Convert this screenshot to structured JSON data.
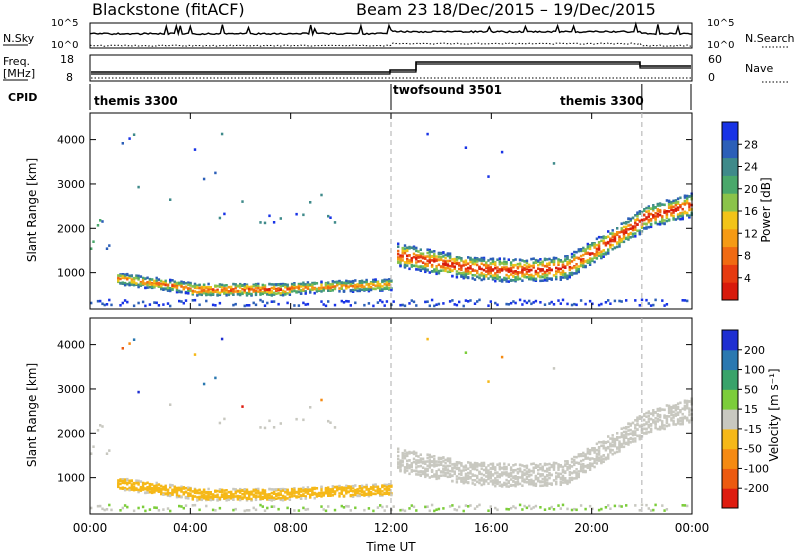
{
  "header": {
    "station": "Blackstone (fitACF)",
    "beam": "Beam 23",
    "dates": "18/Dec/2015 – 19/Dec/2015"
  },
  "status_panels": {
    "nsky_label": "N.Sky",
    "nsearch_label": "N.Search",
    "nsky_ticks": [
      "10^5",
      "10^0"
    ],
    "nsearch_ticks": [
      "10^5",
      "10^0"
    ],
    "freq_label": "Freq.",
    "freq_unit": "[MHz]",
    "freq_ticks": [
      "18",
      "8"
    ],
    "nave_label": "Nave",
    "nave_ticks": [
      "60",
      "0"
    ],
    "cpid_label": "CPID",
    "programs": [
      "themis 3300",
      "twofsound 3501",
      "themis 3300"
    ],
    "program_switch_hours": [
      12,
      22
    ]
  },
  "chart_data": [
    {
      "type": "heatmap",
      "title": "",
      "xlabel": "Time UT",
      "ylabel": "Slant Range [km]",
      "x_ticks": [
        "00:00",
        "04:00",
        "08:00",
        "12:00",
        "16:00",
        "20:00",
        "00:00"
      ],
      "xlim": [
        0,
        24
      ],
      "y_ticks": [
        1000,
        2000,
        3000,
        4000
      ],
      "ylim": [
        180,
        4600
      ],
      "colorbar": {
        "label": "Power [dB]",
        "ticks": [
          4,
          8,
          12,
          16,
          20,
          24,
          28
        ],
        "range": [
          0,
          32
        ],
        "colors": [
          "#1833e6",
          "#2c5fb8",
          "#3f8a8a",
          "#4aa86b",
          "#8bc34a",
          "#f2c418",
          "#f59a14",
          "#f06a12",
          "#e63a10",
          "#d81a0c"
        ]
      },
      "grid_lines_hours": [
        12,
        22
      ]
    },
    {
      "type": "heatmap",
      "title": "",
      "xlabel": "Time UT",
      "ylabel": "Slant Range [km]",
      "x_ticks": [
        "00:00",
        "04:00",
        "08:00",
        "12:00",
        "16:00",
        "20:00",
        "00:00"
      ],
      "xlim": [
        0,
        24
      ],
      "y_ticks": [
        1000,
        2000,
        3000,
        4000
      ],
      "ylim": [
        180,
        4600
      ],
      "colorbar": {
        "label": "Velocity [m s⁻¹]",
        "ticks": [
          "200",
          "100",
          "50",
          "15",
          "-15",
          "-50",
          "-100",
          "-200"
        ],
        "colors": [
          "#1f2fd1",
          "#2a78b0",
          "#39a36a",
          "#7ccd3a",
          "#c8c8c0",
          "#f5b818",
          "#f58a12",
          "#ec5a10",
          "#de1c10"
        ]
      },
      "grid_lines_hours": [
        12,
        22
      ]
    }
  ]
}
